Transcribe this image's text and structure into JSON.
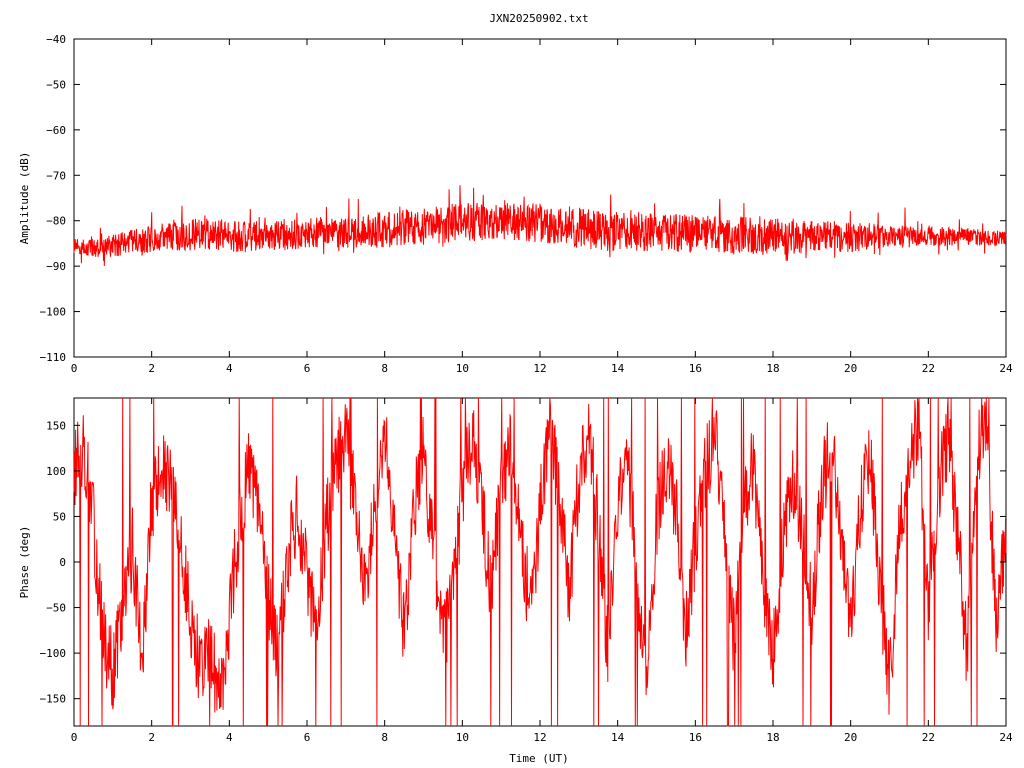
{
  "title": "JXN20250902.txt",
  "trace_color": "#ff0000",
  "chart_data": [
    {
      "type": "line",
      "panel": "amplitude",
      "xlabel": "",
      "ylabel": "Amplitude (dB)",
      "xlim": [
        0,
        24
      ],
      "ylim": [
        -110,
        -40
      ],
      "x_ticks": [
        0,
        2,
        4,
        6,
        8,
        10,
        12,
        14,
        16,
        18,
        20,
        22,
        24
      ],
      "y_ticks": [
        -40,
        -50,
        -60,
        -70,
        -80,
        -90,
        -100,
        -110
      ],
      "grid": false,
      "series": [
        {
          "x": [
            0,
            0.5,
            1,
            1.5,
            2,
            2.5,
            3,
            3.5,
            4,
            4.5,
            5,
            5.5,
            6,
            6.5,
            7,
            7.5,
            8,
            8.5,
            9,
            9.5,
            10,
            10.5,
            11,
            11.5,
            12,
            12.5,
            13,
            13.5,
            14,
            14.5,
            15,
            15.5,
            16,
            16.5,
            17,
            17.5,
            18,
            18.5,
            19,
            19.5,
            20,
            20.5,
            21,
            21.5,
            22,
            22.5,
            23,
            23.5,
            24
          ],
          "y_upper": [
            -84,
            -84,
            -83,
            -82,
            -81,
            -80,
            -79.5,
            -79.5,
            -80,
            -80,
            -80,
            -79.5,
            -79.5,
            -79,
            -79,
            -78.5,
            -78,
            -77.5,
            -77,
            -76.5,
            -76,
            -76,
            -76,
            -76,
            -76,
            -76.5,
            -77,
            -77.5,
            -78,
            -78,
            -78.5,
            -78.5,
            -78.5,
            -79,
            -79,
            -79,
            -79.5,
            -79.5,
            -80,
            -80,
            -80.5,
            -80.5,
            -81,
            -81,
            -81,
            -81.5,
            -81.5,
            -82,
            -82
          ],
          "y_lower": [
            -88,
            -88,
            -88,
            -87.5,
            -87,
            -86.5,
            -86.5,
            -86.5,
            -87,
            -87,
            -86.5,
            -86.5,
            -86,
            -86,
            -86,
            -86,
            -86,
            -85.5,
            -85,
            -85,
            -84.5,
            -84.5,
            -84.5,
            -84.5,
            -85,
            -85.5,
            -86,
            -86.5,
            -87,
            -87,
            -87,
            -87,
            -87,
            -87,
            -87.5,
            -87.5,
            -87.5,
            -87.5,
            -87,
            -87,
            -87,
            -86.5,
            -86,
            -86,
            -85.5,
            -85.5,
            -85.5,
            -85.5,
            -85.5
          ]
        }
      ]
    },
    {
      "type": "line",
      "panel": "phase",
      "xlabel": "Time (UT)",
      "ylabel": "Phase (deg)",
      "xlim": [
        0,
        24
      ],
      "ylim": [
        -180,
        180
      ],
      "x_ticks": [
        0,
        2,
        4,
        6,
        8,
        10,
        12,
        14,
        16,
        18,
        20,
        22,
        24
      ],
      "y_ticks": [
        150,
        100,
        50,
        0,
        -50,
        -100,
        -150
      ],
      "grid": false,
      "series": [
        {
          "x": [
            0,
            0.25,
            0.5,
            0.75,
            1,
            1.25,
            1.5,
            1.75,
            2,
            2.25,
            2.5,
            2.75,
            3,
            3.25,
            3.5,
            3.75,
            4,
            4.25,
            4.5,
            4.75,
            5,
            5.25,
            5.5,
            5.75,
            6,
            6.25,
            6.5,
            6.75,
            7,
            7.25,
            7.5,
            7.75,
            8,
            8.25,
            8.5,
            8.75,
            9,
            9.25,
            9.5,
            9.75,
            10,
            10.25,
            10.5,
            10.75,
            11,
            11.25,
            11.5,
            11.75,
            12,
            12.25,
            12.5,
            12.75,
            13,
            13.25,
            13.5,
            13.75,
            14,
            14.25,
            14.5,
            14.75,
            15,
            15.25,
            15.5,
            15.75,
            16,
            16.25,
            16.5,
            16.75,
            17,
            17.25,
            17.5,
            17.75,
            18,
            18.25,
            18.5,
            18.75,
            19,
            19.25,
            19.5,
            19.75,
            20,
            20.25,
            20.5,
            20.75,
            21,
            21.25,
            21.5,
            21.75,
            22,
            22.25,
            22.5,
            22.75,
            23,
            23.25,
            23.5,
            23.75,
            24
          ],
          "y": [
            100,
            130,
            40,
            -80,
            -120,
            -60,
            20,
            -100,
            60,
            100,
            80,
            20,
            -60,
            -120,
            -90,
            -150,
            -60,
            40,
            100,
            60,
            -40,
            -100,
            0,
            60,
            -20,
            -80,
            40,
            110,
            140,
            60,
            -40,
            80,
            150,
            40,
            -80,
            60,
            120,
            20,
            -90,
            -40,
            80,
            140,
            60,
            -40,
            100,
            120,
            40,
            -60,
            60,
            140,
            80,
            -40,
            90,
            150,
            40,
            -100,
            60,
            120,
            -20,
            -120,
            40,
            110,
            60,
            -80,
            20,
            100,
            140,
            40,
            -90,
            60,
            120,
            -40,
            -100,
            20,
            100,
            40,
            -60,
            80,
            130,
            40,
            -80,
            60,
            120,
            -20,
            -140,
            40,
            110,
            150,
            -60,
            80,
            140,
            30,
            -100,
            120,
            160,
            -80,
            40
          ]
        }
      ]
    }
  ]
}
